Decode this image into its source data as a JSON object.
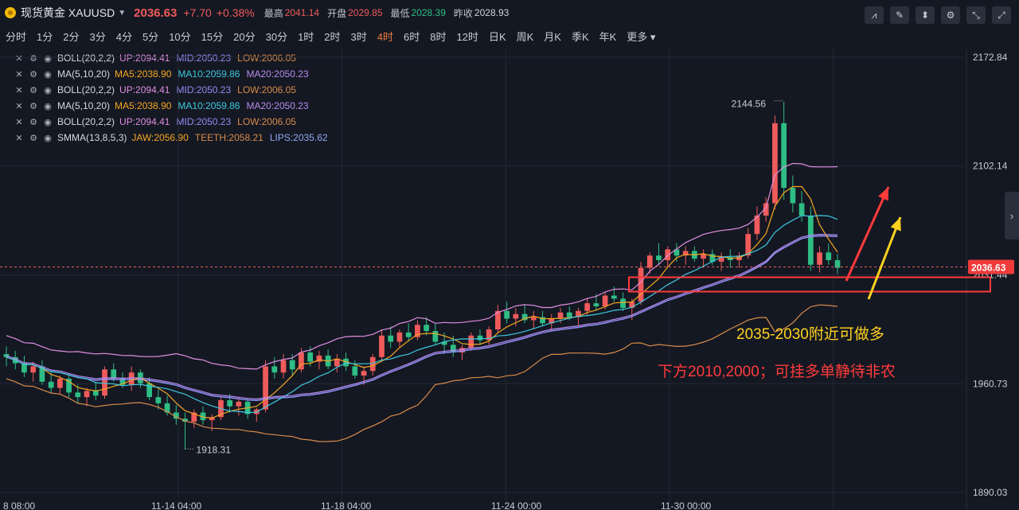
{
  "header": {
    "symbol": "现货黄金 XAUUSD",
    "price": "2036.63",
    "change": "+7.70",
    "change_pct": "+0.38%",
    "high_label": "最高",
    "high": "2041.14",
    "open_label": "开盘",
    "open": "2029.85",
    "low_label": "最低",
    "low": "2028.39",
    "prev_label": "昨收",
    "prev": "2028.93"
  },
  "periods": [
    "分时",
    "1分",
    "2分",
    "3分",
    "4分",
    "5分",
    "10分",
    "15分",
    "20分",
    "30分",
    "1时",
    "2时",
    "3时",
    "4时",
    "6时",
    "8时",
    "12时",
    "日K",
    "周K",
    "月K",
    "季K",
    "年K",
    "更多"
  ],
  "active_period": "4时",
  "indicators": [
    {
      "name": "BOLL(20,2,2)",
      "vals": [
        {
          "t": "UP:2094.41",
          "c": "#e08ee0"
        },
        {
          "t": "MID:2050.23",
          "c": "#8f8ff5"
        },
        {
          "t": "LOW:2006.05",
          "c": "#d98c4a"
        }
      ]
    },
    {
      "name": "MA(5,10,20)",
      "vals": [
        {
          "t": "MA5:2038.90",
          "c": "#f5a623"
        },
        {
          "t": "MA10:2059.86",
          "c": "#3fc8e0"
        },
        {
          "t": "MA20:2050.23",
          "c": "#b78cf0"
        }
      ]
    },
    {
      "name": "BOLL(20,2,2)",
      "vals": [
        {
          "t": "UP:2094.41",
          "c": "#e08ee0"
        },
        {
          "t": "MID:2050.23",
          "c": "#8f8ff5"
        },
        {
          "t": "LOW:2006.05",
          "c": "#d98c4a"
        }
      ]
    },
    {
      "name": "MA(5,10,20)",
      "vals": [
        {
          "t": "MA5:2038.90",
          "c": "#f5a623"
        },
        {
          "t": "MA10:2059.86",
          "c": "#3fc8e0"
        },
        {
          "t": "MA20:2050.23",
          "c": "#b78cf0"
        }
      ]
    },
    {
      "name": "BOLL(20,2,2)",
      "vals": [
        {
          "t": "UP:2094.41",
          "c": "#e08ee0"
        },
        {
          "t": "MID:2050.23",
          "c": "#8f8ff5"
        },
        {
          "t": "LOW:2006.05",
          "c": "#d98c4a"
        }
      ]
    },
    {
      "name": "SMMA(13,8,5,3)",
      "vals": [
        {
          "t": "JAW:2056.90",
          "c": "#f5a623"
        },
        {
          "t": "TEETH:2058.21",
          "c": "#d98c4a"
        },
        {
          "t": "LIPS:2035.62",
          "c": "#8fa8f0"
        }
      ]
    }
  ],
  "chart_data": {
    "type": "candlestick",
    "y_ticks": [
      "2172.84",
      "2102.14",
      "2031.44",
      "1960.73",
      "1890.03"
    ],
    "ylim": [
      1890.03,
      2172.84
    ],
    "x_ticks": [
      "8 08:00",
      "11-14 04:00",
      "11-18 04:00",
      "11-24 00:00",
      "11-30 00:00"
    ],
    "last_price": "2036.63",
    "max_marker": "2144.56",
    "min_marker": "1918.31",
    "ohlc": [
      [
        1980,
        1985,
        1972,
        1978
      ],
      [
        1978,
        1982,
        1970,
        1974
      ],
      [
        1974,
        1979,
        1965,
        1968
      ],
      [
        1968,
        1975,
        1962,
        1972
      ],
      [
        1972,
        1976,
        1960,
        1962
      ],
      [
        1962,
        1968,
        1955,
        1958
      ],
      [
        1958,
        1966,
        1954,
        1964
      ],
      [
        1964,
        1967,
        1952,
        1955
      ],
      [
        1955,
        1960,
        1948,
        1952
      ],
      [
        1952,
        1958,
        1946,
        1956
      ],
      [
        1956,
        1962,
        1950,
        1953
      ],
      [
        1953,
        1972,
        1951,
        1970
      ],
      [
        1970,
        1974,
        1962,
        1964
      ],
      [
        1964,
        1968,
        1958,
        1960
      ],
      [
        1960,
        1972,
        1956,
        1968
      ],
      [
        1968,
        1970,
        1958,
        1961
      ],
      [
        1961,
        1965,
        1950,
        1952
      ],
      [
        1952,
        1957,
        1944,
        1948
      ],
      [
        1948,
        1953,
        1940,
        1942
      ],
      [
        1942,
        1947,
        1934,
        1938
      ],
      [
        1938,
        1942,
        1918,
        1936
      ],
      [
        1936,
        1944,
        1932,
        1942
      ],
      [
        1942,
        1946,
        1934,
        1937
      ],
      [
        1937,
        1941,
        1930,
        1939
      ],
      [
        1939,
        1952,
        1937,
        1950
      ],
      [
        1950,
        1954,
        1942,
        1946
      ],
      [
        1946,
        1952,
        1940,
        1949
      ],
      [
        1949,
        1951,
        1938,
        1941
      ],
      [
        1941,
        1945,
        1936,
        1944
      ],
      [
        1944,
        1976,
        1942,
        1972
      ],
      [
        1972,
        1978,
        1964,
        1968
      ],
      [
        1968,
        1980,
        1964,
        1976
      ],
      [
        1976,
        1980,
        1966,
        1970
      ],
      [
        1970,
        1984,
        1968,
        1981
      ],
      [
        1981,
        1985,
        1972,
        1975
      ],
      [
        1975,
        1982,
        1970,
        1979
      ],
      [
        1979,
        1983,
        1970,
        1972
      ],
      [
        1972,
        1980,
        1968,
        1977
      ],
      [
        1977,
        1981,
        1969,
        1972
      ],
      [
        1972,
        1976,
        1964,
        1966
      ],
      [
        1966,
        1972,
        1960,
        1969
      ],
      [
        1969,
        1980,
        1966,
        1978
      ],
      [
        1978,
        1996,
        1976,
        1992
      ],
      [
        1992,
        1998,
        1984,
        1988
      ],
      [
        1988,
        1996,
        1984,
        1994
      ],
      [
        1994,
        2000,
        1988,
        1991
      ],
      [
        1991,
        2002,
        1989,
        1999
      ],
      [
        1999,
        2004,
        1992,
        1995
      ],
      [
        1995,
        2000,
        1986,
        1988
      ],
      [
        1988,
        1994,
        1980,
        1986
      ],
      [
        1986,
        1992,
        1978,
        1981
      ],
      [
        1981,
        1986,
        1976,
        1984
      ],
      [
        1984,
        1994,
        1982,
        1992
      ],
      [
        1992,
        1996,
        1986,
        1989
      ],
      [
        1989,
        1998,
        1986,
        1996
      ],
      [
        1996,
        2012,
        1994,
        2008
      ],
      [
        2008,
        2014,
        2000,
        2003
      ],
      [
        2003,
        2010,
        1998,
        2006
      ],
      [
        2006,
        2012,
        2000,
        2002
      ],
      [
        2002,
        2008,
        1996,
        2004
      ],
      [
        2004,
        2008,
        1998,
        2000
      ],
      [
        2000,
        2006,
        1995,
        2003
      ],
      [
        2003,
        2010,
        2000,
        2007
      ],
      [
        2007,
        2011,
        2002,
        2004
      ],
      [
        2004,
        2010,
        1998,
        2008
      ],
      [
        2008,
        2016,
        2005,
        2013
      ],
      [
        2013,
        2019,
        2008,
        2011
      ],
      [
        2011,
        2020,
        2009,
        2018
      ],
      [
        2018,
        2024,
        2014,
        2016
      ],
      [
        2016,
        2020,
        2008,
        2010
      ],
      [
        2010,
        2016,
        2002,
        2014
      ],
      [
        2014,
        2040,
        2012,
        2036
      ],
      [
        2036,
        2046,
        2032,
        2044
      ],
      [
        2044,
        2052,
        2038,
        2041
      ],
      [
        2041,
        2050,
        2036,
        2048
      ],
      [
        2048,
        2052,
        2040,
        2044
      ],
      [
        2044,
        2050,
        2038,
        2047
      ],
      [
        2047,
        2050,
        2040,
        2042
      ],
      [
        2042,
        2048,
        2036,
        2045
      ],
      [
        2045,
        2048,
        2038,
        2040
      ],
      [
        2040,
        2046,
        2034,
        2043
      ],
      [
        2043,
        2048,
        2036,
        2041
      ],
      [
        2041,
        2046,
        2036,
        2044
      ],
      [
        2044,
        2062,
        2042,
        2058
      ],
      [
        2058,
        2076,
        2054,
        2070
      ],
      [
        2070,
        2082,
        2066,
        2078
      ],
      [
        2078,
        2135,
        2074,
        2130
      ],
      [
        2130,
        2144,
        2080,
        2088
      ],
      [
        2088,
        2096,
        2072,
        2078
      ],
      [
        2078,
        2086,
        2066,
        2070
      ],
      [
        2070,
        2076,
        2034,
        2038
      ],
      [
        2038,
        2050,
        2033,
        2046
      ],
      [
        2046,
        2052,
        2038,
        2041
      ],
      [
        2041,
        2045,
        2032,
        2036
      ]
    ]
  },
  "annotations": {
    "long_text": "2035-2030附近可做多",
    "below_text": "下方2010,2000；可挂多单静待非农"
  },
  "colors": {
    "up": "#ef5b5b",
    "down": "#2ebd85",
    "bg": "#141822",
    "grid": "#232836",
    "upper": "#e08ee0",
    "lower": "#d98c4a",
    "mid": "#8f8ff5",
    "ma5": "#f5a623",
    "ma10": "#3fc8e0",
    "ma20": "#b78cf0",
    "annot_red": "#ff3b3b",
    "annot_yellow": "#ffd21f"
  }
}
